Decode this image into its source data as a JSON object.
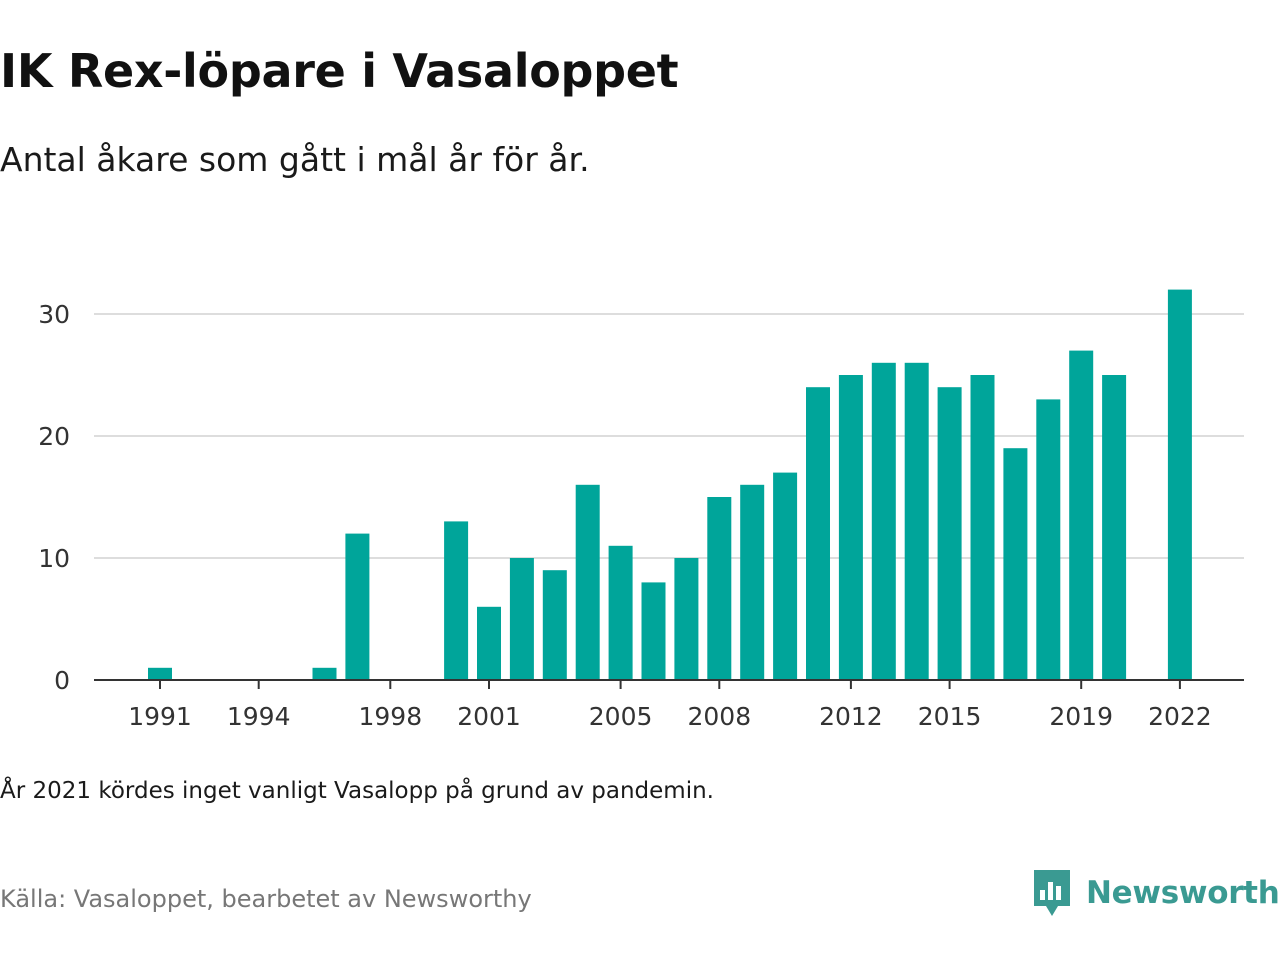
{
  "header": {
    "title": "IK Rex-löpare i Vasaloppet",
    "subtitle": "Antal åkare som gått i mål år för år."
  },
  "footer": {
    "note": "År 2021 kördes inget vanligt Vasalopp på grund av pandemin.",
    "source": "Källa: Vasaloppet, bearbetet av Newsworthy",
    "brand": "Newsworthy",
    "brand_icon": "newsworthy-logo-icon"
  },
  "colors": {
    "bar": "#00a59a",
    "grid": "#dddddd",
    "axis": "#333333",
    "tick_text": "#333333",
    "brand": "#3a9a92"
  },
  "chart_data": {
    "type": "bar",
    "title": "IK Rex-löpare i Vasaloppet",
    "subtitle": "Antal åkare som gått i mål år för år.",
    "xlabel": "",
    "ylabel": "",
    "categories": [
      1991,
      1992,
      1993,
      1994,
      1995,
      1996,
      1997,
      1998,
      1999,
      2000,
      2001,
      2002,
      2003,
      2004,
      2005,
      2006,
      2007,
      2008,
      2009,
      2010,
      2011,
      2012,
      2013,
      2014,
      2015,
      2016,
      2017,
      2018,
      2019,
      2020,
      2021,
      2022
    ],
    "values": [
      1,
      0,
      0,
      0,
      0,
      1,
      12,
      0,
      0,
      13,
      6,
      10,
      9,
      16,
      11,
      8,
      10,
      15,
      16,
      17,
      24,
      25,
      26,
      26,
      24,
      25,
      19,
      23,
      27,
      25,
      0,
      32
    ],
    "ylim": [
      0,
      32
    ],
    "yticks": [
      0,
      10,
      20,
      30
    ],
    "xticks": [
      "1991",
      "1994",
      "1998",
      "2001",
      "2005",
      "2008",
      "2012",
      "2015",
      "2019",
      "2022"
    ],
    "grid": true,
    "legend": "none"
  }
}
